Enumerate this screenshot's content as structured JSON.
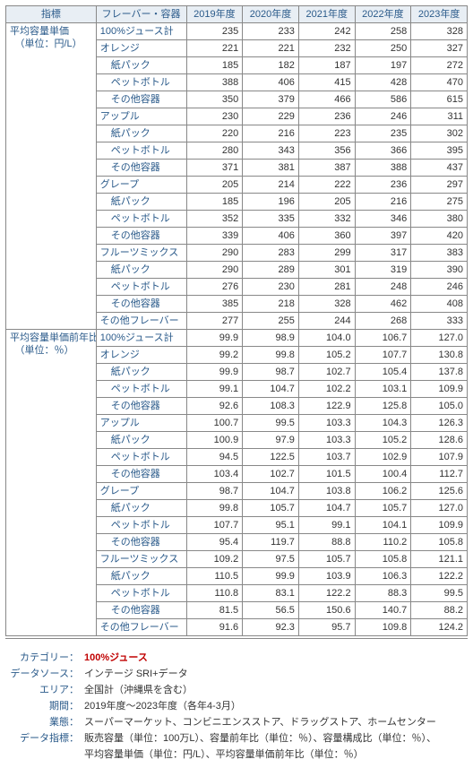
{
  "headers": {
    "metric": "指標",
    "flavor": "フレーバー・容器",
    "years": [
      "2019年度",
      "2020年度",
      "2021年度",
      "2022年度",
      "2023年度"
    ]
  },
  "metrics": [
    {
      "title": "平均容量単価",
      "unit": "（単位：円/L）",
      "decimals": 0,
      "rows": [
        {
          "label": "100%ジュース計",
          "indent": 0,
          "v": [
            235,
            233,
            242,
            258,
            328
          ]
        },
        {
          "label": "オレンジ",
          "indent": 0,
          "v": [
            221,
            221,
            232,
            250,
            327
          ]
        },
        {
          "label": "紙パック",
          "indent": 1,
          "v": [
            185,
            182,
            187,
            197,
            272
          ]
        },
        {
          "label": "ペットボトル",
          "indent": 1,
          "v": [
            388,
            406,
            415,
            428,
            470
          ]
        },
        {
          "label": "その他容器",
          "indent": 1,
          "v": [
            350,
            379,
            466,
            586,
            615
          ]
        },
        {
          "label": "アップル",
          "indent": 0,
          "v": [
            230,
            229,
            236,
            246,
            311
          ]
        },
        {
          "label": "紙パック",
          "indent": 1,
          "v": [
            220,
            216,
            223,
            235,
            302
          ]
        },
        {
          "label": "ペットボトル",
          "indent": 1,
          "v": [
            280,
            343,
            356,
            366,
            395
          ]
        },
        {
          "label": "その他容器",
          "indent": 1,
          "v": [
            371,
            381,
            387,
            388,
            437
          ]
        },
        {
          "label": "グレープ",
          "indent": 0,
          "v": [
            205,
            214,
            222,
            236,
            297
          ]
        },
        {
          "label": "紙パック",
          "indent": 1,
          "v": [
            185,
            196,
            205,
            216,
            275
          ]
        },
        {
          "label": "ペットボトル",
          "indent": 1,
          "v": [
            352,
            335,
            332,
            346,
            380
          ]
        },
        {
          "label": "その他容器",
          "indent": 1,
          "v": [
            339,
            406,
            360,
            397,
            420
          ]
        },
        {
          "label": "フルーツミックス",
          "indent": 0,
          "v": [
            290,
            283,
            299,
            317,
            383
          ]
        },
        {
          "label": "紙パック",
          "indent": 1,
          "v": [
            290,
            289,
            301,
            319,
            390
          ]
        },
        {
          "label": "ペットボトル",
          "indent": 1,
          "v": [
            276,
            230,
            281,
            248,
            246
          ]
        },
        {
          "label": "その他容器",
          "indent": 1,
          "v": [
            385,
            218,
            328,
            462,
            408
          ]
        },
        {
          "label": "その他フレーバー",
          "indent": 0,
          "v": [
            277,
            255,
            244,
            268,
            333
          ]
        }
      ]
    },
    {
      "title": "平均容量単価前年比",
      "unit": "（単位：％）",
      "decimals": 1,
      "rows": [
        {
          "label": "100%ジュース計",
          "indent": 0,
          "v": [
            99.9,
            98.9,
            104.0,
            106.7,
            127.0
          ]
        },
        {
          "label": "オレンジ",
          "indent": 0,
          "v": [
            99.2,
            99.8,
            105.2,
            107.7,
            130.8
          ]
        },
        {
          "label": "紙パック",
          "indent": 1,
          "v": [
            99.9,
            98.7,
            102.7,
            105.4,
            137.8
          ]
        },
        {
          "label": "ペットボトル",
          "indent": 1,
          "v": [
            99.1,
            104.7,
            102.2,
            103.1,
            109.9
          ]
        },
        {
          "label": "その他容器",
          "indent": 1,
          "v": [
            92.6,
            108.3,
            122.9,
            125.8,
            105.0
          ]
        },
        {
          "label": "アップル",
          "indent": 0,
          "v": [
            100.7,
            99.5,
            103.3,
            104.3,
            126.3
          ]
        },
        {
          "label": "紙パック",
          "indent": 1,
          "v": [
            100.9,
            97.9,
            103.3,
            105.2,
            128.6
          ]
        },
        {
          "label": "ペットボトル",
          "indent": 1,
          "v": [
            94.5,
            122.5,
            103.7,
            102.9,
            107.9
          ]
        },
        {
          "label": "その他容器",
          "indent": 1,
          "v": [
            103.4,
            102.7,
            101.5,
            100.4,
            112.7
          ]
        },
        {
          "label": "グレープ",
          "indent": 0,
          "v": [
            98.7,
            104.7,
            103.8,
            106.2,
            125.6
          ]
        },
        {
          "label": "紙パック",
          "indent": 1,
          "v": [
            99.8,
            105.7,
            104.7,
            105.7,
            127.0
          ]
        },
        {
          "label": "ペットボトル",
          "indent": 1,
          "v": [
            107.7,
            95.1,
            99.1,
            104.1,
            109.9
          ]
        },
        {
          "label": "その他容器",
          "indent": 1,
          "v": [
            95.4,
            119.7,
            88.8,
            110.2,
            105.8
          ]
        },
        {
          "label": "フルーツミックス",
          "indent": 0,
          "v": [
            109.2,
            97.5,
            105.7,
            105.8,
            121.1
          ]
        },
        {
          "label": "紙パック",
          "indent": 1,
          "v": [
            110.5,
            99.9,
            103.9,
            106.3,
            122.2
          ]
        },
        {
          "label": "ペットボトル",
          "indent": 1,
          "v": [
            110.8,
            83.1,
            122.2,
            88.3,
            99.5
          ]
        },
        {
          "label": "その他容器",
          "indent": 1,
          "v": [
            81.5,
            56.5,
            150.6,
            140.7,
            88.2
          ]
        },
        {
          "label": "その他フレーバー",
          "indent": 0,
          "v": [
            91.6,
            92.3,
            95.7,
            109.8,
            124.2
          ]
        }
      ]
    }
  ],
  "meta": [
    {
      "key": "カテゴリー：",
      "val": "100%ジュース",
      "red": true
    },
    {
      "key": "データソース：",
      "val": "インテージ SRI+データ"
    },
    {
      "key": "エリア：",
      "val": "全国計（沖縄県を含む）"
    },
    {
      "key": "期間：",
      "val": "2019年度～2023年度（各年4-3月）"
    },
    {
      "key": "業態：",
      "val": "スーパーマーケット、コンビニエンスストア、ドラッグストア、ホームセンター"
    },
    {
      "key": "データ指標：",
      "val": "販売容量（単位：100万L）、容量前年比（単位：％）、容量構成比（単位：％）、"
    },
    {
      "key": "",
      "val": "平均容量単価（単位：円/L）、平均容量単価前年比（単位：％）"
    }
  ]
}
